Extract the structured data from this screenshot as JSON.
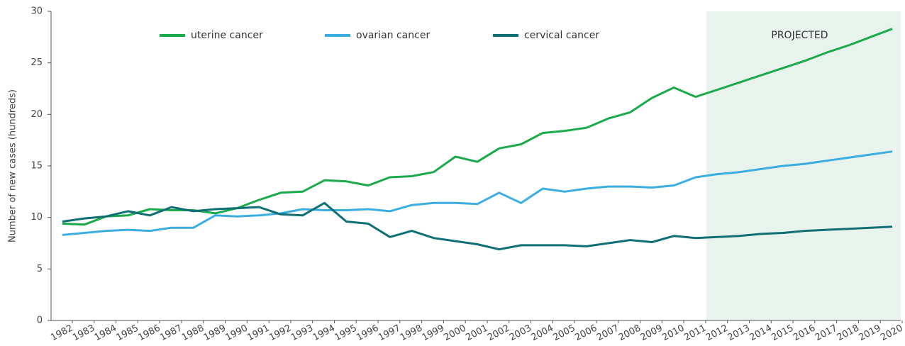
{
  "chart_data": {
    "type": "line",
    "y_label": "Number of new cases (hundreds)",
    "annotation": "PROJECTED",
    "projected_start": "2011",
    "legend": "top",
    "categories": [
      "1982",
      "1983",
      "1984",
      "1985",
      "1986",
      "1987",
      "1988",
      "1989",
      "1990",
      "1991",
      "1992",
      "1993",
      "1994",
      "1995",
      "1996",
      "1997",
      "1998",
      "1999",
      "2000",
      "2001",
      "2002",
      "2003",
      "2004",
      "2005",
      "2006",
      "2007",
      "2008",
      "2009",
      "2010",
      "2011",
      "2012",
      "2013",
      "2014",
      "2015",
      "2016",
      "2017",
      "2018",
      "2019",
      "2020"
    ],
    "series": [
      {
        "name": "uterine cancer",
        "color": "#1aaa4b",
        "values": [
          9.4,
          9.3,
          10.1,
          10.2,
          10.8,
          10.7,
          10.7,
          10.4,
          10.9,
          11.7,
          12.4,
          12.5,
          13.6,
          13.5,
          13.1,
          13.9,
          14.0,
          14.4,
          15.9,
          15.4,
          16.7,
          17.1,
          18.2,
          18.4,
          18.7,
          19.6,
          20.2,
          21.6,
          22.6,
          21.7,
          22.4,
          23.1,
          23.8,
          24.5,
          25.2,
          26.0,
          26.7,
          27.5,
          28.3
        ]
      },
      {
        "name": "ovarian cancer",
        "color": "#3aaee0",
        "values": [
          8.3,
          8.5,
          8.7,
          8.8,
          8.7,
          9.0,
          9.0,
          10.2,
          10.1,
          10.2,
          10.4,
          10.8,
          10.7,
          10.7,
          10.8,
          10.6,
          11.2,
          11.4,
          11.4,
          11.3,
          12.4,
          11.4,
          12.8,
          12.5,
          12.8,
          13.0,
          13.0,
          12.9,
          13.1,
          13.9,
          14.2,
          14.4,
          14.7,
          15.0,
          15.2,
          15.5,
          15.8,
          16.1,
          16.4
        ]
      },
      {
        "name": "cervical cancer",
        "color": "#0e6f74",
        "values": [
          9.6,
          9.9,
          10.1,
          10.6,
          10.2,
          11.0,
          10.6,
          10.8,
          10.9,
          11.0,
          10.3,
          10.2,
          11.4,
          9.6,
          9.4,
          8.1,
          8.7,
          8.0,
          7.7,
          7.4,
          6.9,
          7.3,
          7.3,
          7.3,
          7.2,
          7.5,
          7.8,
          7.6,
          8.2,
          8.0,
          8.1,
          8.2,
          8.4,
          8.5,
          8.7,
          8.8,
          8.9,
          9.0,
          9.1
        ]
      }
    ],
    "ylim": [
      0,
      30
    ],
    "yticks": [
      0,
      5,
      10,
      15,
      20,
      25,
      30
    ]
  }
}
